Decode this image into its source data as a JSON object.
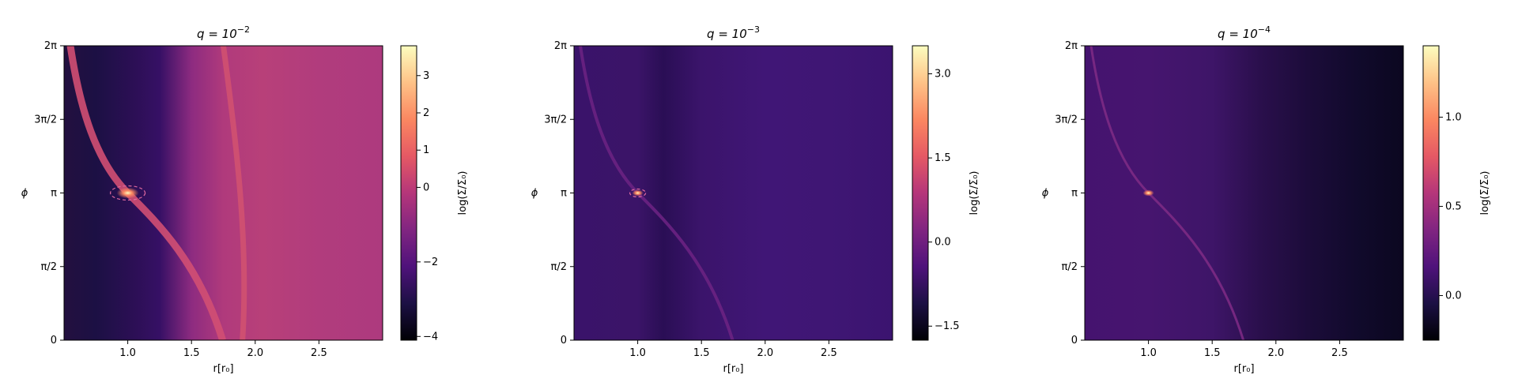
{
  "chart_data": [
    {
      "type": "heatmap",
      "title_base": "q = 10",
      "title_exp": "−2",
      "xlabel": "r[r₀]",
      "ylabel": "ϕ",
      "xlim": [
        0.5,
        3.0
      ],
      "ylim": [
        0,
        6.2832
      ],
      "x_ticks": [
        {
          "v": 1.0,
          "label": "1.0"
        },
        {
          "v": 1.5,
          "label": "1.5"
        },
        {
          "v": 2.0,
          "label": "2.0"
        },
        {
          "v": 2.5,
          "label": "2.5"
        }
      ],
      "y_ticks": [
        {
          "v": 0,
          "label": "0"
        },
        {
          "v": 1.5708,
          "label": "π/2"
        },
        {
          "v": 3.1416,
          "label": "π"
        },
        {
          "v": 4.7124,
          "label": "3π/2"
        },
        {
          "v": 6.2832,
          "label": "2π"
        }
      ],
      "colorbar": {
        "label": "log(Σ/Σ₀)",
        "range": [
          -4.1,
          3.8
        ],
        "ticks": [
          {
            "v": -4,
            "label": "−4"
          },
          {
            "v": -2,
            "label": "−2"
          },
          {
            "v": 0,
            "label": "0"
          },
          {
            "v": 1,
            "label": "1"
          },
          {
            "v": 2,
            "label": "2"
          },
          {
            "v": 3,
            "label": "3"
          }
        ]
      },
      "planet": {
        "r": 1.0,
        "phi": 3.1416
      },
      "colormap": "magma",
      "hill_circle": true
    },
    {
      "type": "heatmap",
      "title_base": "q = 10",
      "title_exp": "−3",
      "xlabel": "r[r₀]",
      "ylabel": "ϕ",
      "xlim": [
        0.5,
        3.0
      ],
      "ylim": [
        0,
        6.2832
      ],
      "x_ticks": [
        {
          "v": 1.0,
          "label": "1.0"
        },
        {
          "v": 1.5,
          "label": "1.5"
        },
        {
          "v": 2.0,
          "label": "2.0"
        },
        {
          "v": 2.5,
          "label": "2.5"
        }
      ],
      "y_ticks": [
        {
          "v": 0,
          "label": "0"
        },
        {
          "v": 1.5708,
          "label": "π/2"
        },
        {
          "v": 3.1416,
          "label": "π"
        },
        {
          "v": 4.7124,
          "label": "3π/2"
        },
        {
          "v": 6.2832,
          "label": "2π"
        }
      ],
      "colorbar": {
        "label": "log(Σ/Σ₀)",
        "range": [
          -1.75,
          3.5
        ],
        "ticks": [
          {
            "v": -1.5,
            "label": "−1.5"
          },
          {
            "v": 0.0,
            "label": "0.0"
          },
          {
            "v": 1.5,
            "label": "1.5"
          },
          {
            "v": 3.0,
            "label": "3.0"
          }
        ]
      },
      "planet": {
        "r": 1.0,
        "phi": 3.1416
      },
      "colormap": "magma",
      "hill_circle": true
    },
    {
      "type": "heatmap",
      "title_base": "q = 10",
      "title_exp": "−4",
      "xlabel": "r[r₀]",
      "ylabel": "ϕ",
      "xlim": [
        0.5,
        3.0
      ],
      "ylim": [
        0,
        6.2832
      ],
      "x_ticks": [
        {
          "v": 1.0,
          "label": "1.0"
        },
        {
          "v": 1.5,
          "label": "1.5"
        },
        {
          "v": 2.0,
          "label": "2.0"
        },
        {
          "v": 2.5,
          "label": "2.5"
        }
      ],
      "y_ticks": [
        {
          "v": 0,
          "label": "0"
        },
        {
          "v": 1.5708,
          "label": "π/2"
        },
        {
          "v": 3.1416,
          "label": "π"
        },
        {
          "v": 4.7124,
          "label": "3π/2"
        },
        {
          "v": 6.2832,
          "label": "2π"
        }
      ],
      "colorbar": {
        "label": "log(Σ/Σ₀)",
        "range": [
          -0.25,
          1.4
        ],
        "ticks": [
          {
            "v": 0.0,
            "label": "0.0"
          },
          {
            "v": 0.5,
            "label": "0.5"
          },
          {
            "v": 1.0,
            "label": "1.0"
          }
        ]
      },
      "planet": {
        "r": 1.0,
        "phi": 3.1416
      },
      "colormap": "magma",
      "hill_circle": false
    }
  ]
}
